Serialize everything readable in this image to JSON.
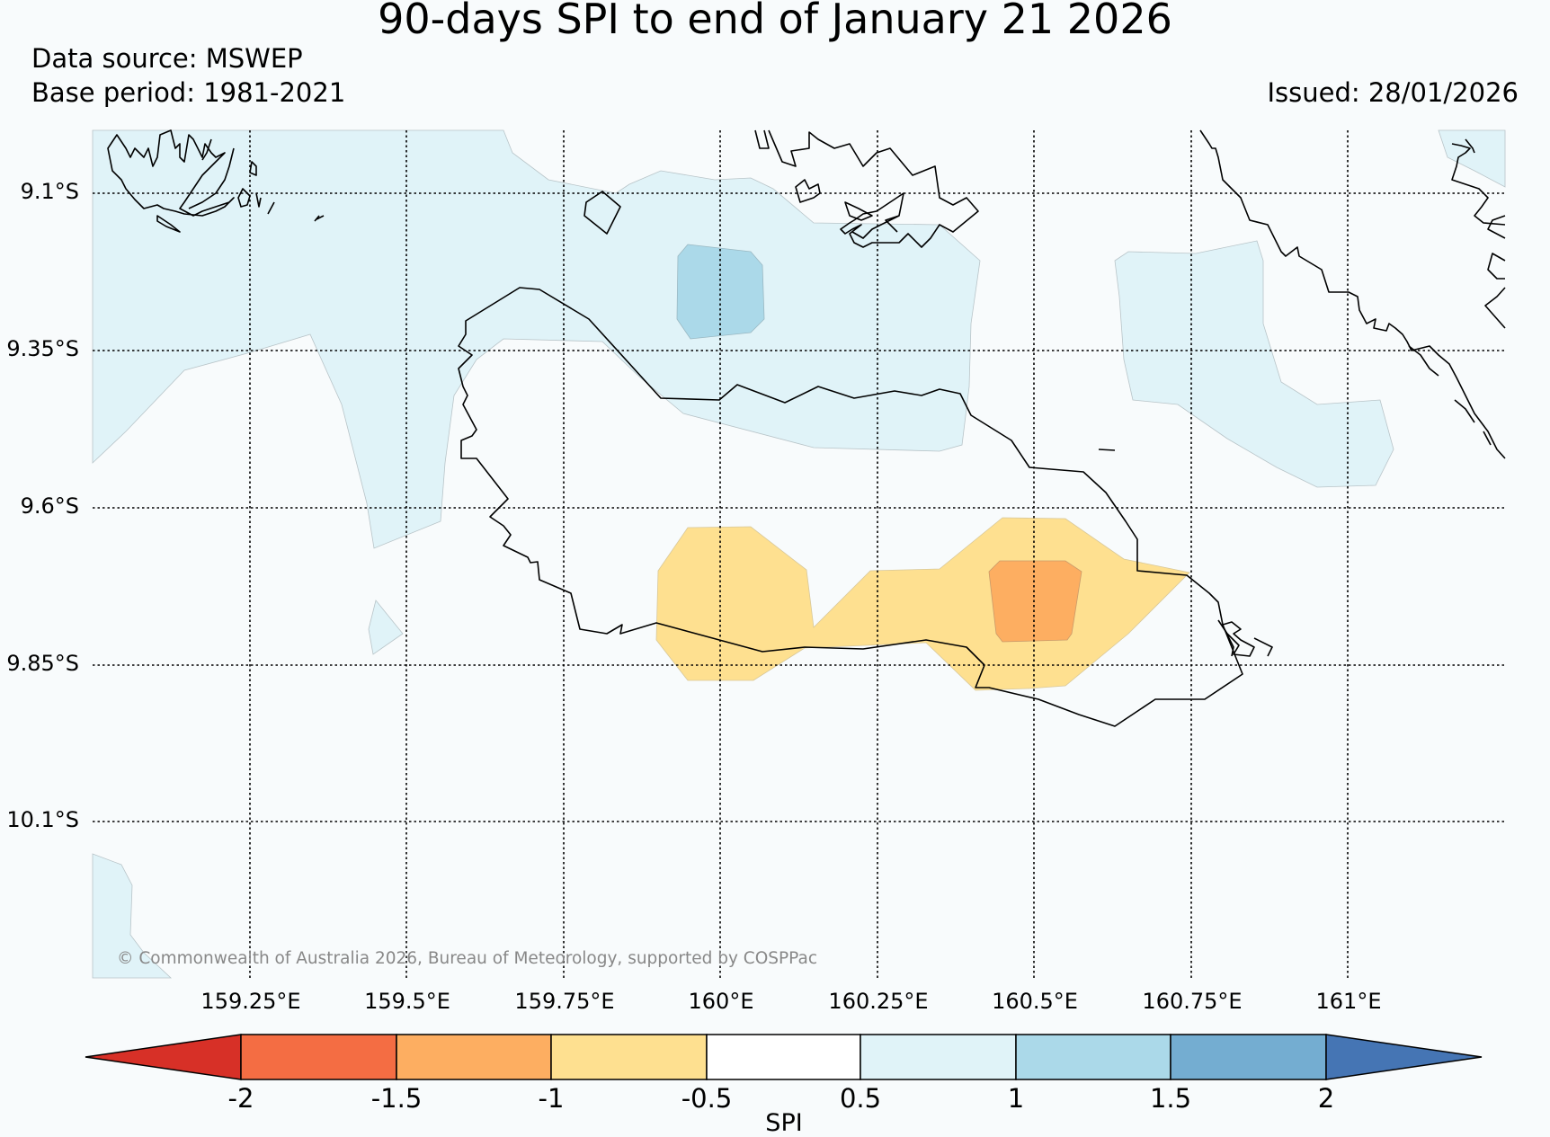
{
  "title": "90-days SPI to end of January 21 2026",
  "data_source": "Data source: MSWEP",
  "base_period": "Base period: 1981-2021",
  "issued": "Issued: 28/01/2026",
  "credit": "© Commonwealth of Australia 2026, Bureau of Meteorology, supported by COSPPac",
  "map": {
    "lat_labels": [
      "9.1°S",
      "9.35°S",
      "9.6°S",
      "9.85°S",
      "10.1°S"
    ],
    "lon_labels": [
      "159.25°E",
      "159.5°E",
      "159.75°E",
      "160°E",
      "160.25°E",
      "160.5°E",
      "160.75°E",
      "161°E"
    ],
    "lat_values": [
      -9.1,
      -9.35,
      -9.6,
      -9.85,
      -10.1
    ],
    "lon_values": [
      159.25,
      159.5,
      159.75,
      160.0,
      160.25,
      160.5,
      160.75,
      161.0
    ],
    "extent": {
      "lon_min": 159.0,
      "lon_max": 161.25,
      "lat_min": -10.35,
      "lat_max": -9.0
    }
  },
  "colorbar": {
    "title": "SPI",
    "labels": [
      "-2",
      "-1.5",
      "-1",
      "-0.5",
      "0.5",
      "1",
      "1.5",
      "2"
    ],
    "colors": [
      "#d73027",
      "#f46d43",
      "#fdae61",
      "#fee090",
      "#ffffff",
      "#e0f3f8",
      "#abd9e9",
      "#74add1",
      "#4575b4"
    ]
  },
  "colors": {
    "wet_0_5_to_1": "#e0f3f8",
    "wet_1_to_1_5": "#abd9e9",
    "dry_minus1_to_minus0_5": "#fee090",
    "dry_minus1_5_to_minus1": "#fdae61"
  }
}
